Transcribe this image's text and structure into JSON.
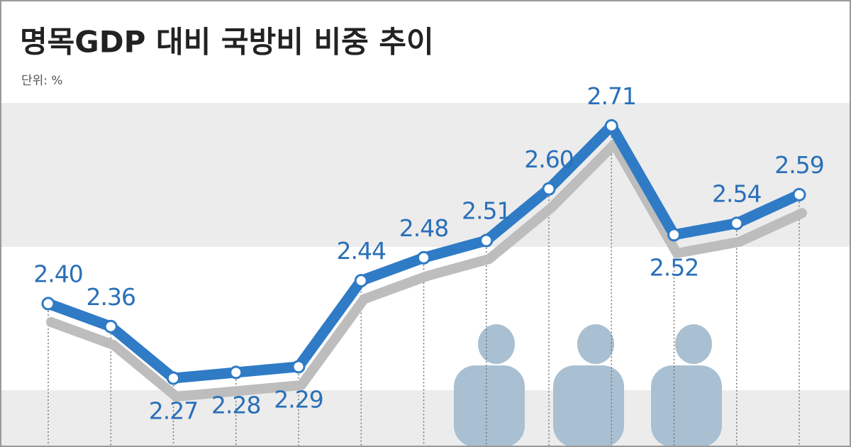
{
  "chart_data": {
    "type": "line",
    "title": "명목GDP 대비 국방비 비중 추이",
    "subtitle": "단위: %",
    "categories": [
      null,
      null,
      null,
      null,
      null,
      null,
      null,
      null,
      null,
      null,
      null,
      null,
      null
    ],
    "series": [
      {
        "color": "#2f7bc6",
        "values": [
          2.4,
          2.36,
          2.27,
          2.28,
          2.29,
          2.44,
          2.48,
          2.51,
          2.6,
          2.71,
          2.52,
          2.54,
          2.59
        ],
        "value_labels": [
          "2.40",
          "2.36",
          "2.27",
          "2.28",
          "2.29",
          "2.44",
          "2.48",
          "2.51",
          "2.60",
          "2.71",
          "2.52",
          "2.54",
          "2.59"
        ]
      }
    ],
    "ylim": [
      2.15,
      2.75
    ]
  }
}
